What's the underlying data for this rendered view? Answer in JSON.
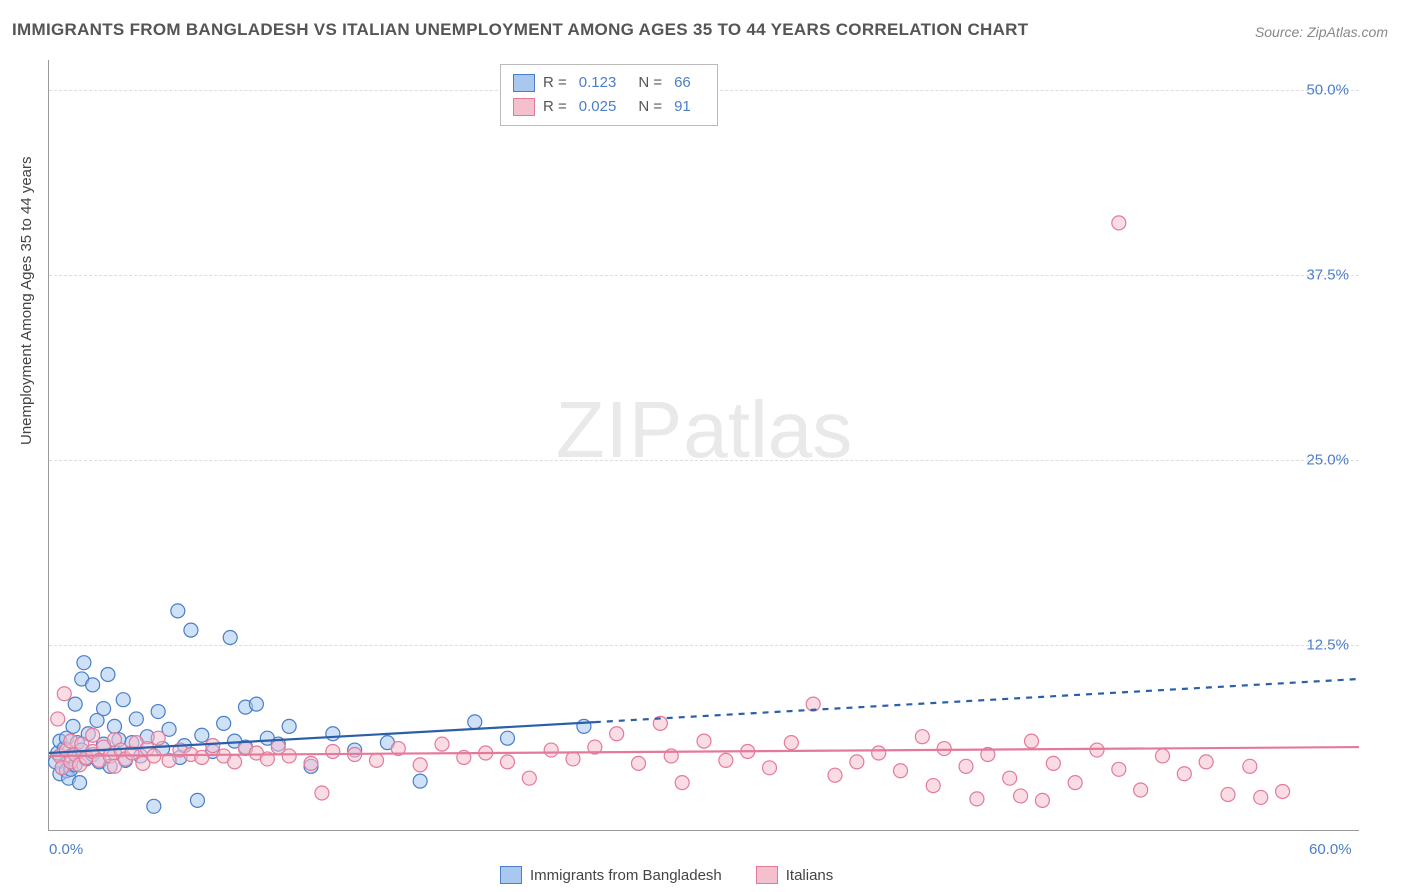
{
  "title": "IMMIGRANTS FROM BANGLADESH VS ITALIAN UNEMPLOYMENT AMONG AGES 35 TO 44 YEARS CORRELATION CHART",
  "source": "Source: ZipAtlas.com",
  "y_axis_title": "Unemployment Among Ages 35 to 44 years",
  "watermark_bold": "ZIP",
  "watermark_light": "atlas",
  "chart": {
    "type": "scatter",
    "xlim": [
      0,
      60
    ],
    "ylim": [
      0,
      52
    ],
    "xticks": [
      {
        "v": 0,
        "label": "0.0%"
      },
      {
        "v": 60,
        "label": "60.0%"
      }
    ],
    "yticks": [
      {
        "v": 12.5,
        "label": "12.5%"
      },
      {
        "v": 25.0,
        "label": "25.0%"
      },
      {
        "v": 37.5,
        "label": "37.5%"
      },
      {
        "v": 50.0,
        "label": "50.0%"
      }
    ],
    "grid_color": "#dddddd",
    "background_color": "#ffffff",
    "marker_radius": 7,
    "marker_opacity": 0.55,
    "series": [
      {
        "name": "Immigrants from Bangladesh",
        "color_fill": "#a8c8f0",
        "color_stroke": "#4a7ec9",
        "R": "0.123",
        "N": "66",
        "trend": {
          "color": "#2b5fa8",
          "y_at_xmin": 5.2,
          "y_at_xmax": 10.2,
          "solid_until_x": 25,
          "dash": "6,6",
          "width": 2.2
        },
        "points": [
          [
            0.3,
            4.6
          ],
          [
            0.4,
            5.2
          ],
          [
            0.5,
            3.8
          ],
          [
            0.5,
            6.0
          ],
          [
            0.6,
            4.2
          ],
          [
            0.7,
            5.5
          ],
          [
            0.8,
            4.0
          ],
          [
            0.8,
            6.2
          ],
          [
            0.9,
            3.5
          ],
          [
            1.0,
            5.0
          ],
          [
            1.0,
            4.1
          ],
          [
            1.1,
            7.0
          ],
          [
            1.2,
            8.5
          ],
          [
            1.2,
            4.4
          ],
          [
            1.3,
            5.9
          ],
          [
            1.4,
            3.2
          ],
          [
            1.5,
            10.2
          ],
          [
            1.5,
            5.4
          ],
          [
            1.6,
            11.3
          ],
          [
            1.7,
            4.8
          ],
          [
            1.8,
            6.5
          ],
          [
            2.0,
            9.8
          ],
          [
            2.0,
            5.1
          ],
          [
            2.2,
            7.4
          ],
          [
            2.3,
            4.6
          ],
          [
            2.5,
            8.2
          ],
          [
            2.5,
            5.8
          ],
          [
            2.7,
            10.5
          ],
          [
            2.8,
            4.3
          ],
          [
            3.0,
            7.0
          ],
          [
            3.0,
            5.2
          ],
          [
            3.2,
            6.1
          ],
          [
            3.4,
            8.8
          ],
          [
            3.5,
            4.7
          ],
          [
            3.8,
            5.9
          ],
          [
            4.0,
            7.5
          ],
          [
            4.2,
            5.0
          ],
          [
            4.5,
            6.3
          ],
          [
            4.8,
            1.6
          ],
          [
            5.0,
            8.0
          ],
          [
            5.2,
            5.5
          ],
          [
            5.5,
            6.8
          ],
          [
            5.9,
            14.8
          ],
          [
            6.0,
            4.9
          ],
          [
            6.2,
            5.7
          ],
          [
            6.5,
            13.5
          ],
          [
            6.8,
            2.0
          ],
          [
            7.0,
            6.4
          ],
          [
            7.5,
            5.3
          ],
          [
            8.0,
            7.2
          ],
          [
            8.3,
            13.0
          ],
          [
            8.5,
            6.0
          ],
          [
            9.0,
            5.6
          ],
          [
            9.0,
            8.3
          ],
          [
            9.5,
            8.5
          ],
          [
            10.0,
            6.2
          ],
          [
            10.5,
            5.8
          ],
          [
            11.0,
            7.0
          ],
          [
            12.0,
            4.3
          ],
          [
            13.0,
            6.5
          ],
          [
            14.0,
            5.4
          ],
          [
            15.5,
            5.9
          ],
          [
            17.0,
            3.3
          ],
          [
            19.5,
            7.3
          ],
          [
            21.0,
            6.2
          ],
          [
            24.5,
            7.0
          ]
        ]
      },
      {
        "name": "Italians",
        "color_fill": "#f5c0cd",
        "color_stroke": "#e47a9a",
        "R": "0.025",
        "N": "91",
        "trend": {
          "color": "#e47a9a",
          "y_at_xmin": 5.0,
          "y_at_xmax": 5.6,
          "solid_until_x": 60,
          "dash": "",
          "width": 2.2
        },
        "points": [
          [
            0.4,
            7.5
          ],
          [
            0.5,
            5.0
          ],
          [
            0.6,
            4.2
          ],
          [
            0.7,
            9.2
          ],
          [
            0.8,
            5.4
          ],
          [
            1.0,
            4.6
          ],
          [
            1.0,
            6.0
          ],
          [
            1.2,
            5.1
          ],
          [
            1.4,
            4.4
          ],
          [
            1.5,
            5.8
          ],
          [
            1.7,
            4.9
          ],
          [
            2.0,
            5.3
          ],
          [
            2.0,
            6.4
          ],
          [
            2.3,
            4.7
          ],
          [
            2.5,
            5.6
          ],
          [
            2.8,
            5.0
          ],
          [
            3.0,
            4.3
          ],
          [
            3.0,
            6.1
          ],
          [
            3.3,
            5.4
          ],
          [
            3.5,
            4.8
          ],
          [
            3.8,
            5.2
          ],
          [
            4.0,
            5.9
          ],
          [
            4.3,
            4.5
          ],
          [
            4.5,
            5.5
          ],
          [
            4.8,
            5.0
          ],
          [
            5.0,
            6.2
          ],
          [
            5.5,
            4.7
          ],
          [
            6.0,
            5.4
          ],
          [
            6.5,
            5.1
          ],
          [
            7.0,
            4.9
          ],
          [
            7.5,
            5.7
          ],
          [
            8.0,
            5.0
          ],
          [
            8.5,
            4.6
          ],
          [
            9.0,
            5.5
          ],
          [
            9.5,
            5.2
          ],
          [
            10.0,
            4.8
          ],
          [
            10.5,
            5.6
          ],
          [
            11.0,
            5.0
          ],
          [
            12.0,
            4.5
          ],
          [
            12.5,
            2.5
          ],
          [
            13.0,
            5.3
          ],
          [
            14.0,
            5.1
          ],
          [
            15.0,
            4.7
          ],
          [
            16.0,
            5.5
          ],
          [
            17.0,
            4.4
          ],
          [
            18.0,
            5.8
          ],
          [
            19.0,
            4.9
          ],
          [
            20.0,
            5.2
          ],
          [
            21.0,
            4.6
          ],
          [
            22.0,
            3.5
          ],
          [
            23.0,
            5.4
          ],
          [
            24.0,
            4.8
          ],
          [
            25.0,
            5.6
          ],
          [
            26.0,
            6.5
          ],
          [
            27.0,
            4.5
          ],
          [
            28.0,
            7.2
          ],
          [
            28.5,
            5.0
          ],
          [
            29.0,
            3.2
          ],
          [
            30.0,
            6.0
          ],
          [
            31.0,
            4.7
          ],
          [
            32.0,
            5.3
          ],
          [
            33.0,
            4.2
          ],
          [
            34.0,
            5.9
          ],
          [
            35.0,
            8.5
          ],
          [
            36.0,
            3.7
          ],
          [
            37.0,
            4.6
          ],
          [
            38.0,
            5.2
          ],
          [
            39.0,
            4.0
          ],
          [
            40.0,
            6.3
          ],
          [
            40.5,
            3.0
          ],
          [
            41.0,
            5.5
          ],
          [
            42.0,
            4.3
          ],
          [
            42.5,
            2.1
          ],
          [
            43.0,
            5.1
          ],
          [
            44.0,
            3.5
          ],
          [
            44.5,
            2.3
          ],
          [
            45.0,
            6.0
          ],
          [
            45.5,
            2.0
          ],
          [
            46.0,
            4.5
          ],
          [
            47.0,
            3.2
          ],
          [
            48.0,
            5.4
          ],
          [
            49.0,
            4.1
          ],
          [
            49.0,
            41.0
          ],
          [
            50.0,
            2.7
          ],
          [
            51.0,
            5.0
          ],
          [
            52.0,
            3.8
          ],
          [
            53.0,
            4.6
          ],
          [
            54.0,
            2.4
          ],
          [
            55.0,
            4.3
          ],
          [
            55.5,
            2.2
          ],
          [
            56.5,
            2.6
          ]
        ]
      }
    ]
  },
  "legend_labels": {
    "R": "R =",
    "N": "N ="
  }
}
